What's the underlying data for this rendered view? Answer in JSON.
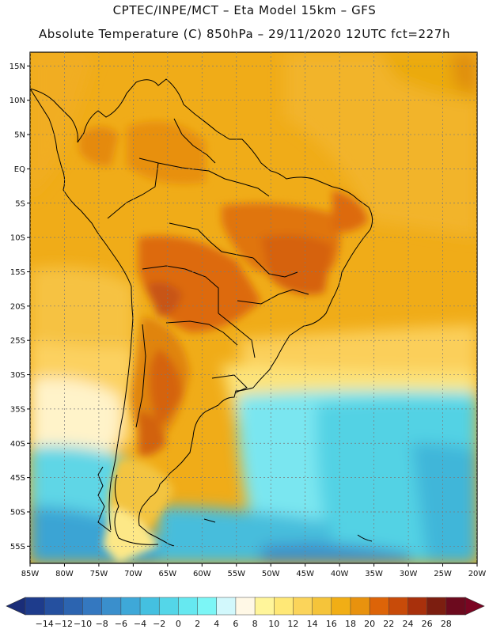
{
  "header": {
    "line1": "CPTEC/INPE/MCT –  Eta Model 15km – GFS",
    "line2": "Absolute Temperature (C) 850hPa – 29/11/2020 12UTC fct=227h"
  },
  "map": {
    "lat_labels": [
      "15N",
      "10N",
      "5N",
      "EQ",
      "5S",
      "10S",
      "15S",
      "20S",
      "25S",
      "30S",
      "35S",
      "40S",
      "45S",
      "50S",
      "55S"
    ],
    "lat_values": [
      15,
      10,
      5,
      0,
      -5,
      -10,
      -15,
      -20,
      -25,
      -30,
      -35,
      -40,
      -45,
      -50,
      -55
    ],
    "lon_labels": [
      "85W",
      "80W",
      "75W",
      "70W",
      "65W",
      "60W",
      "55W",
      "50W",
      "45W",
      "40W",
      "35W",
      "30W",
      "25W",
      "20W"
    ],
    "lon_values": [
      -85,
      -80,
      -75,
      -70,
      -65,
      -60,
      -55,
      -50,
      -45,
      -40,
      -35,
      -30,
      -25,
      -20
    ],
    "extent": {
      "lon_min": -85,
      "lon_max": -20,
      "lat_min": -57.5,
      "lat_max": 17
    }
  },
  "colorbar": {
    "labels": [
      "-14",
      "-12",
      "-10",
      "-8",
      "-6",
      "-4",
      "-2",
      "0",
      "2",
      "4",
      "6",
      "8",
      "10",
      "12",
      "14",
      "16",
      "18",
      "20",
      "22",
      "24",
      "26",
      "28"
    ],
    "colors": [
      "#1e3c8c",
      "#25509f",
      "#2c64b0",
      "#3478c0",
      "#3a8fcc",
      "#3ea8d8",
      "#44c0e0",
      "#54d6e8",
      "#66e8f0",
      "#7cf6f6",
      "#d2f8fc",
      "#fff8e6",
      "#fff59a",
      "#ffe876",
      "#fbd45a",
      "#f5c43a",
      "#f1ae15",
      "#e8920e",
      "#dd6408",
      "#c84b09",
      "#a8300c",
      "#7c1e10",
      "#6c0a1e"
    ],
    "under_color": "#1a2d78",
    "over_color": "#7a0522"
  }
}
